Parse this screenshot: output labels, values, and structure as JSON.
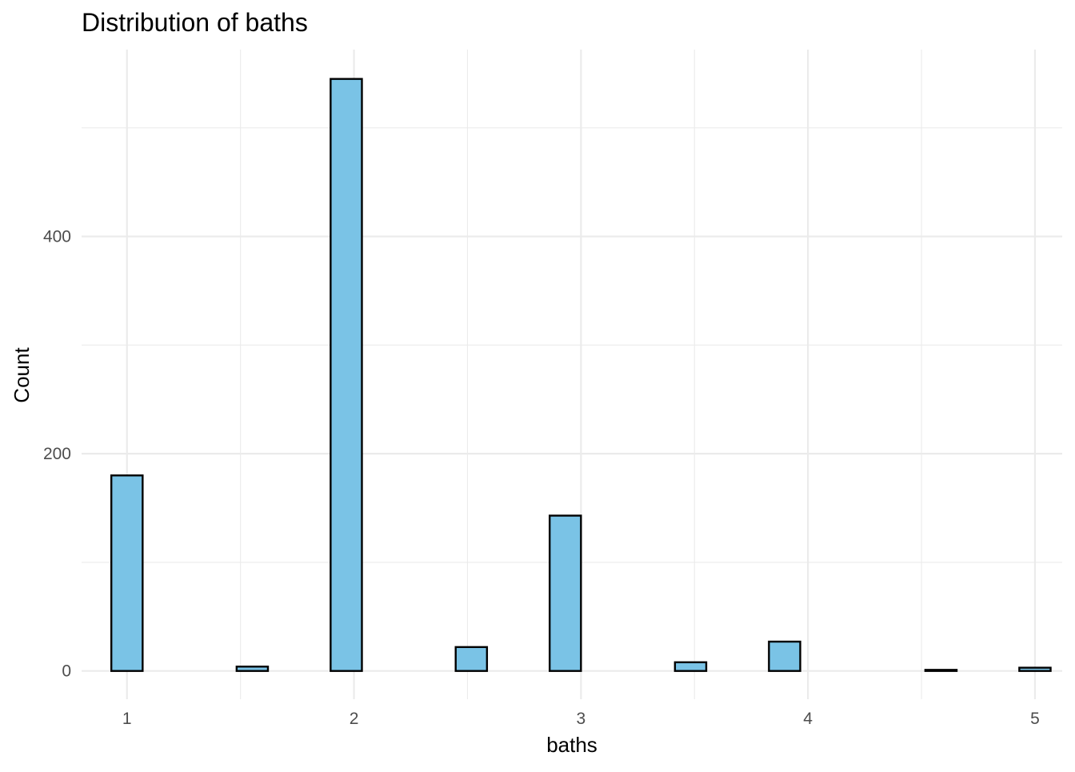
{
  "chart_data": {
    "type": "bar",
    "title": "Distribution of baths",
    "xlabel": "baths",
    "ylabel": "Count",
    "bin_width": 0.1379,
    "bins": [
      {
        "x": 1.0,
        "count": 180
      },
      {
        "x": 1.138,
        "count": 0
      },
      {
        "x": 1.276,
        "count": 0
      },
      {
        "x": 1.414,
        "count": 0
      },
      {
        "x": 1.552,
        "count": 4
      },
      {
        "x": 1.69,
        "count": 0
      },
      {
        "x": 1.828,
        "count": 0
      },
      {
        "x": 1.966,
        "count": 545
      },
      {
        "x": 2.103,
        "count": 0
      },
      {
        "x": 2.241,
        "count": 0
      },
      {
        "x": 2.379,
        "count": 0
      },
      {
        "x": 2.517,
        "count": 22
      },
      {
        "x": 2.655,
        "count": 0
      },
      {
        "x": 2.793,
        "count": 0
      },
      {
        "x": 2.931,
        "count": 143
      },
      {
        "x": 3.069,
        "count": 0
      },
      {
        "x": 3.207,
        "count": 0
      },
      {
        "x": 3.345,
        "count": 0
      },
      {
        "x": 3.483,
        "count": 8
      },
      {
        "x": 3.621,
        "count": 0
      },
      {
        "x": 3.759,
        "count": 0
      },
      {
        "x": 3.897,
        "count": 27
      },
      {
        "x": 4.034,
        "count": 0
      },
      {
        "x": 4.172,
        "count": 0
      },
      {
        "x": 4.31,
        "count": 0
      },
      {
        "x": 4.448,
        "count": 0
      },
      {
        "x": 4.586,
        "count": 1
      },
      {
        "x": 4.724,
        "count": 0
      },
      {
        "x": 4.862,
        "count": 0
      },
      {
        "x": 5.0,
        "count": 3
      }
    ],
    "xlim": [
      0.8,
      5.12
    ],
    "ylim": [
      -26,
      572
    ],
    "x_ticks": [
      {
        "value": 1,
        "label": "1"
      },
      {
        "value": 2,
        "label": "2"
      },
      {
        "value": 3,
        "label": "3"
      },
      {
        "value": 4,
        "label": "4"
      },
      {
        "value": 5,
        "label": "5"
      }
    ],
    "y_ticks": [
      {
        "value": 0,
        "label": "0"
      },
      {
        "value": 200,
        "label": "200"
      },
      {
        "value": 400,
        "label": "400"
      }
    ],
    "x_minor_ticks": [
      1.5,
      2.5,
      3.5,
      4.5
    ],
    "y_minor_ticks": [
      100,
      300,
      500
    ],
    "grid": true,
    "legend": "none",
    "colors": {
      "fill": "#7AC3E6",
      "outline": "#000000",
      "grid": "#EBEBEB"
    }
  }
}
